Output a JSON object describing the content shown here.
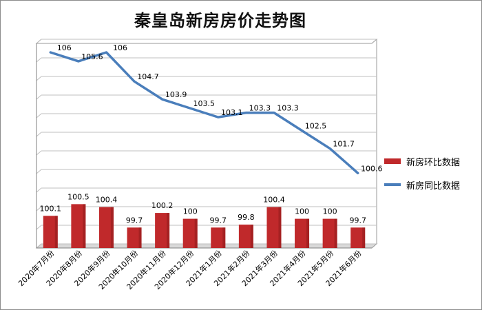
{
  "colors": {
    "bar": "#c0292b",
    "bar_dark": "#8e1b1c",
    "line": "#4a7ebb",
    "grid": "#bfbfbf"
  },
  "chart_data": {
    "type": "bar",
    "title": "秦皇岛新房房价走势图",
    "categories": [
      "2020年7月份",
      "2020年8月份",
      "2020年9月份",
      "2020年10月份",
      "2020年11月份",
      "2020年12月份",
      "2021年1月份",
      "2021年2月份",
      "2021年3月份",
      "2021年4月份",
      "2021年5月份",
      "2021年6月份"
    ],
    "series": [
      {
        "name": "新房环比数据",
        "type": "bar",
        "values": [
          100.1,
          100.5,
          100.4,
          99.7,
          100.2,
          100,
          99.7,
          99.8,
          100.4,
          100,
          100,
          99.7
        ],
        "labels": [
          "100.1",
          "100.5",
          "100.4",
          "99.7",
          "100.2",
          "100",
          "99.7",
          "99.8",
          "100.4",
          "100",
          "100",
          "99.7"
        ]
      },
      {
        "name": "新房同比数据",
        "type": "line",
        "values": [
          106,
          105.6,
          106,
          104.7,
          103.9,
          103.5,
          103.1,
          103.3,
          103.3,
          102.5,
          101.7,
          100.6
        ],
        "labels": [
          "106",
          "105.6",
          "106",
          "104.7",
          "103.9",
          "103.5",
          "103.1",
          "103.3",
          "103.3",
          "102.5",
          "101.7",
          "100.6"
        ]
      }
    ],
    "legend_position": "right",
    "grid": true
  }
}
